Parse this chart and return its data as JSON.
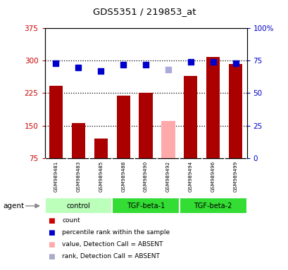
{
  "title": "GDS5351 / 219853_at",
  "samples": [
    "GSM989481",
    "GSM989483",
    "GSM989485",
    "GSM989488",
    "GSM989490",
    "GSM989492",
    "GSM989494",
    "GSM989496",
    "GSM989499"
  ],
  "bar_values": [
    242,
    155,
    120,
    220,
    225,
    160,
    265,
    308,
    293
  ],
  "bar_colors": [
    "#aa0000",
    "#aa0000",
    "#aa0000",
    "#aa0000",
    "#aa0000",
    "#ffaaaa",
    "#aa0000",
    "#aa0000",
    "#aa0000"
  ],
  "rank_values": [
    73,
    70,
    67,
    72,
    72,
    68,
    74,
    74,
    73
  ],
  "rank_colors": [
    "#0000cc",
    "#0000cc",
    "#0000cc",
    "#0000cc",
    "#0000cc",
    "#aaaadd",
    "#0000cc",
    "#0000cc",
    "#0000cc"
  ],
  "ylim_left": [
    75,
    375
  ],
  "ylim_right": [
    0,
    100
  ],
  "yticks_left": [
    75,
    150,
    225,
    300,
    375
  ],
  "yticks_right": [
    0,
    25,
    50,
    75,
    100
  ],
  "ytick_labels_left": [
    "75",
    "150",
    "225",
    "300",
    "375"
  ],
  "ytick_labels_right": [
    "0",
    "25",
    "50",
    "75",
    "100%"
  ],
  "groups": [
    {
      "label": "control",
      "indices": [
        0,
        1,
        2
      ],
      "color": "#bbffbb"
    },
    {
      "label": "TGF-beta-1",
      "indices": [
        3,
        4,
        5
      ],
      "color": "#33dd33"
    },
    {
      "label": "TGF-beta-2",
      "indices": [
        6,
        7,
        8
      ],
      "color": "#33dd33"
    }
  ],
  "agent_label": "agent",
  "legend_items": [
    {
      "label": "count",
      "color": "#cc0000"
    },
    {
      "label": "percentile rank within the sample",
      "color": "#0000cc"
    },
    {
      "label": "value, Detection Call = ABSENT",
      "color": "#ffaaaa"
    },
    {
      "label": "rank, Detection Call = ABSENT",
      "color": "#aaaacc"
    }
  ],
  "bg_color": "#ffffff",
  "bar_width": 0.6,
  "rank_marker_size": 6,
  "ylabel_left_color": "#cc0000",
  "ylabel_right_color": "#0000cc"
}
